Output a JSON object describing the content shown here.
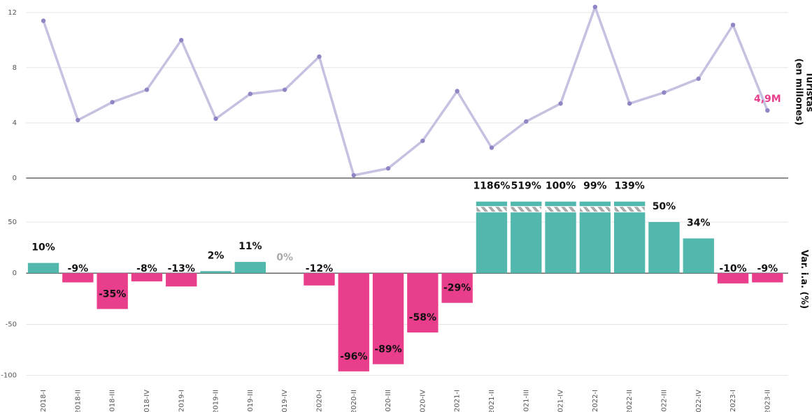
{
  "chart_data": [
    {
      "type": "line",
      "y_label": "Turistas\n(en millones)",
      "categories": [
        "2018-I",
        "2018-II",
        "2018-III",
        "2018-IV",
        "2019-I",
        "2019-II",
        "2019-III",
        "2019-IV",
        "2020-I",
        "2020-II",
        "2020-III",
        "2020-IV",
        "2021-I",
        "2021-II",
        "2021-III",
        "2021-IV",
        "2022-I",
        "2022-II",
        "2022-III",
        "2022-IV",
        "2023-I",
        "2023-II"
      ],
      "values": [
        11.4,
        4.2,
        5.5,
        6.4,
        10.0,
        4.3,
        6.1,
        6.4,
        8.8,
        0.2,
        0.7,
        2.7,
        6.3,
        2.2,
        4.1,
        5.4,
        12.4,
        5.4,
        6.2,
        7.2,
        11.1,
        4.9
      ],
      "annotation": "4,9M",
      "annotation_color": "#e83e8c",
      "color": "#c5c1e0",
      "marker_color": "#8f84c4",
      "ylim": [
        0,
        12.5
      ],
      "yticks": [
        0,
        4,
        8,
        12
      ],
      "grid": true
    },
    {
      "type": "bar",
      "y_label": "Var. i.a. (%)",
      "values": [
        10,
        -9,
        -35,
        -8,
        -13,
        2,
        11,
        0,
        -12,
        -96,
        -89,
        -58,
        -29,
        1186,
        519,
        100,
        99,
        139,
        50,
        34,
        -10,
        -9
      ],
      "value_labels": [
        "10%",
        "-9%",
        "-35%",
        "-8%",
        "-13%",
        "2%",
        "11%",
        "0%",
        "-12%",
        "-96%",
        "-89%",
        "-58%",
        "-29%",
        "1186%",
        "519%",
        "100%",
        "99%",
        "139%",
        "50%",
        "34%",
        "-10%",
        "-9%"
      ],
      "positive_color": "#52b8ae",
      "negative_color": "#e83e8c",
      "zero_label_color": "#aaaaaa",
      "break_at": 70,
      "ylim": [
        -105,
        93
      ],
      "yticks": [
        -100,
        -50,
        0,
        50
      ],
      "grid": true
    }
  ]
}
